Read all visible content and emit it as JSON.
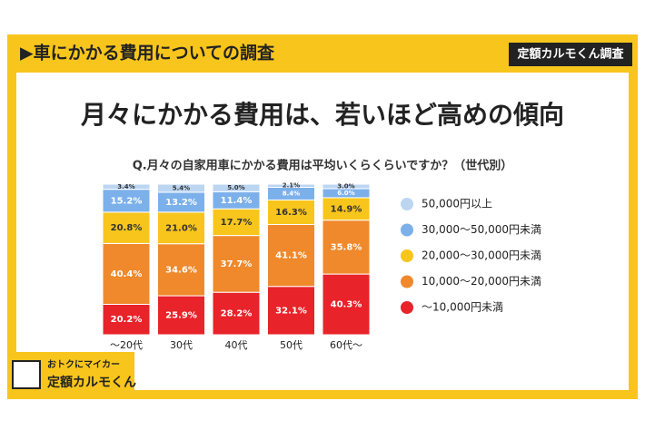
{
  "header": {
    "title": "▶車にかかる費用についての調査",
    "badge": "定額カルモくん調査"
  },
  "headline": "月々にかかる費用は、若いほど高めの傾向",
  "logo": {
    "tagline": "おトクにマイカー",
    "name": "定額カルモくん"
  },
  "chart_data": {
    "type": "stacked-bar",
    "title": "Q.月々の自家用車にかかる費用は平均いくらくらいですか？（世代別）",
    "categories": [
      "～20代",
      "30代",
      "40代",
      "50代",
      "60代～"
    ],
    "series": [
      {
        "name": "50,000円以上",
        "color": "#bcd6f2",
        "values": [
          3.4,
          5.4,
          5.0,
          2.1,
          3.0
        ],
        "value_labels": [
          "3.4%",
          "5.4%",
          "5.0%",
          "2.1%",
          "3.0%"
        ]
      },
      {
        "name": "30,000～50,000円未満",
        "color": "#7cb0ea",
        "values": [
          15.2,
          13.2,
          11.4,
          8.4,
          6.0
        ],
        "value_labels": [
          "15.2%",
          "13.2%",
          "11.4%",
          "8.4%",
          "6.0%"
        ]
      },
      {
        "name": "20,000～30,000円未満",
        "color": "#f8c51c",
        "values": [
          20.8,
          21.0,
          17.7,
          16.3,
          14.9
        ],
        "value_labels": [
          "20.8%",
          "21.0%",
          "17.7%",
          "16.3%",
          "14.9%"
        ]
      },
      {
        "name": "10,000～20,000円未満",
        "color": "#f0892c",
        "values": [
          40.4,
          34.6,
          37.7,
          41.1,
          35.8
        ],
        "value_labels": [
          "40.4%",
          "34.6%",
          "37.7%",
          "41.1%",
          "35.8%"
        ]
      },
      {
        "name": "～10,000円未満",
        "color": "#e8232a",
        "values": [
          20.2,
          25.9,
          28.2,
          32.1,
          40.3
        ],
        "value_labels": [
          "20.2%",
          "25.9%",
          "28.2%",
          "32.1%",
          "40.3%"
        ]
      }
    ]
  }
}
